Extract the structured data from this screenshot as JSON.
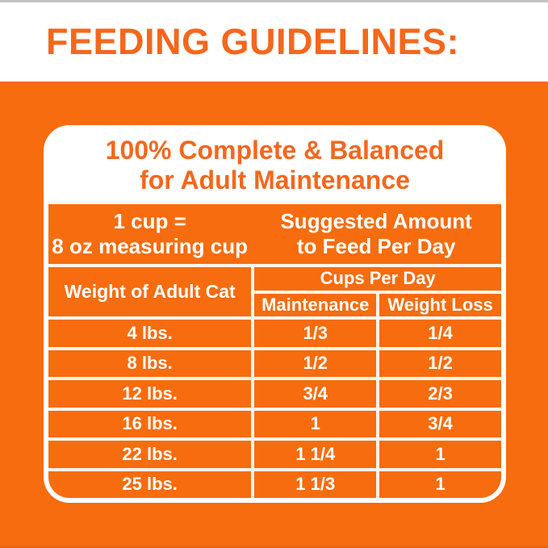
{
  "page_header": {
    "title": "FEEDING GUIDELINES:"
  },
  "card": {
    "title_line1": "100% Complete & Balanced",
    "title_line2": "for Adult Maintenance",
    "cup_note_line1": "1 cup =",
    "cup_note_line2": "8 oz measuring cup",
    "suggested_line1": "Suggested Amount",
    "suggested_line2": "to Feed Per Day",
    "col_weight_header": "Weight of Adult Cat",
    "col_cups_header": "Cups Per Day",
    "col_maintenance": "Maintenance",
    "col_weight_loss": "Weight Loss",
    "rows": [
      {
        "weight": "4 lbs.",
        "maintenance": "1/3",
        "weight_loss": "1/4"
      },
      {
        "weight": "8 lbs.",
        "maintenance": "1/2",
        "weight_loss": "1/2"
      },
      {
        "weight": "12 lbs.",
        "maintenance": "3/4",
        "weight_loss": "2/3"
      },
      {
        "weight": "16 lbs.",
        "maintenance": "1",
        "weight_loss": "3/4"
      },
      {
        "weight": "22 lbs.",
        "maintenance": "1 1/4",
        "weight_loss": "1"
      },
      {
        "weight": "25 lbs.",
        "maintenance": "1 1/3",
        "weight_loss": "1"
      }
    ]
  },
  "colors": {
    "background_orange": "#f76c0e",
    "accent_orange_text": "#f4671d",
    "text_on_orange": "#ffffff",
    "top_edge_gray": "#c2c2c2"
  },
  "chart_data": {
    "type": "table",
    "title": "100% Complete & Balanced for Adult Maintenance",
    "subtitle": "FEEDING GUIDELINES:",
    "notes": [
      "1 cup = 8 oz measuring cup",
      "Suggested Amount to Feed Per Day"
    ],
    "columns": [
      "Weight of Adult Cat",
      "Cups Per Day - Maintenance",
      "Cups Per Day - Weight Loss"
    ],
    "rows": [
      [
        "4 lbs.",
        "1/3",
        "1/4"
      ],
      [
        "8 lbs.",
        "1/2",
        "1/2"
      ],
      [
        "12 lbs.",
        "3/4",
        "2/3"
      ],
      [
        "16 lbs.",
        "1",
        "3/4"
      ],
      [
        "22 lbs.",
        "1 1/4",
        "1"
      ],
      [
        "25 lbs.",
        "1 1/3",
        "1"
      ]
    ]
  }
}
